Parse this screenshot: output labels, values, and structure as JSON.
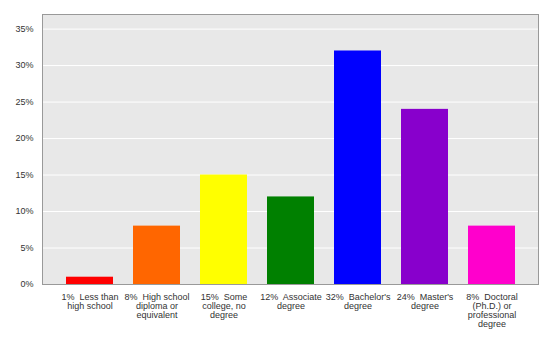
{
  "chart_data": {
    "type": "bar",
    "categories": [
      "1%  Less than\nhigh school",
      "8%  High school\ndiploma or\nequivalent",
      "15%  Some\ncollege, no\ndegree",
      "12%  Associate\ndegree",
      "32%  Bachelor's\ndegree",
      "24%  Master's\ndegree",
      "8%  Doctoral\n(Ph.D.) or\nprofessional\ndegree"
    ],
    "values": [
      1,
      8,
      15,
      12,
      32,
      24,
      8
    ],
    "colors": [
      "#ff0000",
      "#ff6600",
      "#ffff00",
      "#008000",
      "#0000ff",
      "#8800cc",
      "#ff00cc"
    ],
    "ylim": [
      0,
      37
    ],
    "yticks": [
      {
        "value": 0,
        "label": "0%"
      },
      {
        "value": 5,
        "label": "5%"
      },
      {
        "value": 10,
        "label": "10%"
      },
      {
        "value": 15,
        "label": "15%"
      },
      {
        "value": 20,
        "label": "20%"
      },
      {
        "value": 25,
        "label": "25%"
      },
      {
        "value": 30,
        "label": "30%"
      },
      {
        "value": 35,
        "label": "35%"
      }
    ],
    "grid": true
  }
}
